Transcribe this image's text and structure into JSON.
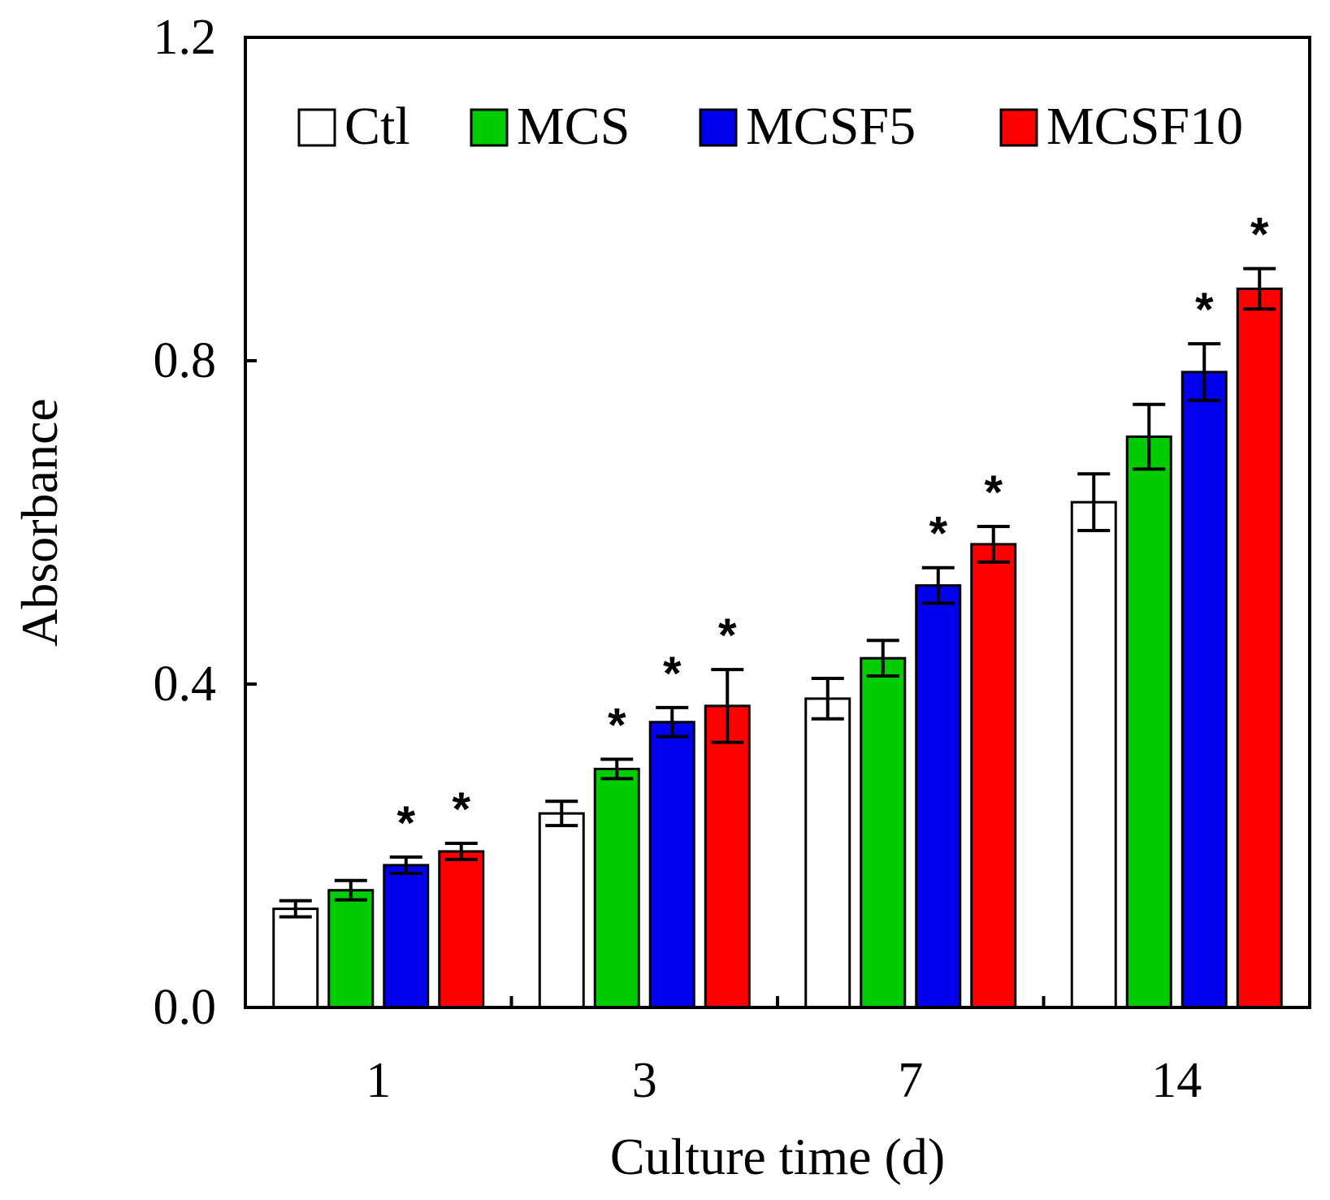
{
  "chart_data": {
    "type": "bar",
    "title": "",
    "xlabel": "Culture time (d)",
    "ylabel": "Absorbance",
    "categories": [
      "1",
      "3",
      "7",
      "14"
    ],
    "ylim": [
      0,
      1.2
    ],
    "yticks": [
      "0.0",
      "0.4",
      "0.8",
      "1.2"
    ],
    "legend_position": "top",
    "significance_marker": "*",
    "series": [
      {
        "name": "Ctl",
        "color": "#ffffff",
        "values": [
          0.122,
          0.24,
          0.382,
          0.625
        ],
        "errors": [
          0.01,
          0.015,
          0.025,
          0.035
        ],
        "significant": [
          false,
          false,
          false,
          false
        ]
      },
      {
        "name": "MCS",
        "color": "#00cc00",
        "values": [
          0.145,
          0.295,
          0.432,
          0.706
        ],
        "errors": [
          0.012,
          0.012,
          0.022,
          0.04
        ],
        "significant": [
          false,
          true,
          false,
          false
        ]
      },
      {
        "name": "MCSF5",
        "color": "#0000ee",
        "values": [
          0.176,
          0.353,
          0.522,
          0.786
        ],
        "errors": [
          0.01,
          0.018,
          0.022,
          0.035
        ],
        "significant": [
          true,
          true,
          true,
          true
        ]
      },
      {
        "name": "MCSF10",
        "color": "#ff0000",
        "values": [
          0.193,
          0.373,
          0.573,
          0.889
        ],
        "errors": [
          0.01,
          0.045,
          0.022,
          0.025
        ],
        "significant": [
          true,
          true,
          true,
          true
        ]
      }
    ]
  }
}
